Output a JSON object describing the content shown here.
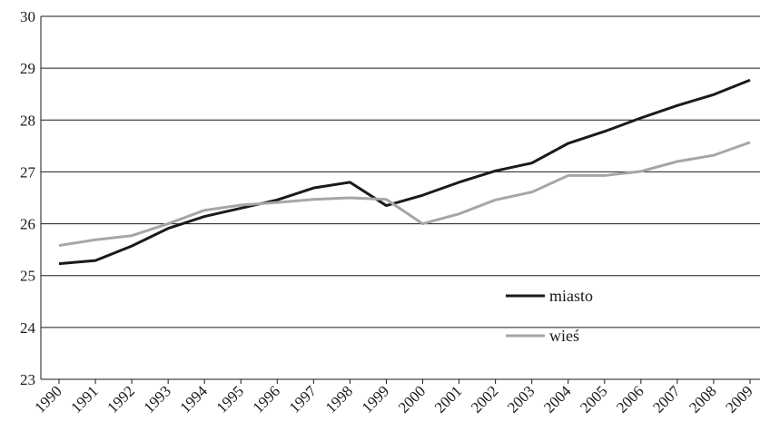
{
  "chart_data": {
    "type": "line",
    "title": "",
    "xlabel": "",
    "ylabel": "",
    "x": [
      "1990",
      "1991",
      "1992",
      "1993",
      "1994",
      "1995",
      "1996",
      "1997",
      "1998",
      "1999",
      "2000",
      "2001",
      "2002",
      "2003",
      "2004",
      "2005",
      "2006",
      "2007",
      "2008",
      "2009"
    ],
    "ylim": [
      23,
      30
    ],
    "yticks": [
      "23",
      "24",
      "25",
      "26",
      "27",
      "28",
      "29",
      "30"
    ],
    "grid": "horizontal",
    "legend_position": "inside-lower-right",
    "series": [
      {
        "name": "miasto",
        "color": "#1a1a1a",
        "values": [
          25.23,
          25.29,
          25.57,
          25.91,
          26.14,
          26.3,
          26.46,
          26.69,
          26.8,
          26.35,
          26.55,
          26.8,
          27.02,
          27.17,
          27.55,
          27.78,
          28.04,
          28.28,
          28.49,
          28.77
        ]
      },
      {
        "name": "wieś",
        "color": "#a6a6a6",
        "values": [
          25.58,
          25.69,
          25.77,
          26.0,
          26.26,
          26.36,
          26.41,
          26.47,
          26.5,
          26.47,
          26.0,
          26.19,
          26.46,
          26.61,
          26.93,
          26.93,
          27.01,
          27.2,
          27.32,
          27.57
        ]
      }
    ]
  }
}
